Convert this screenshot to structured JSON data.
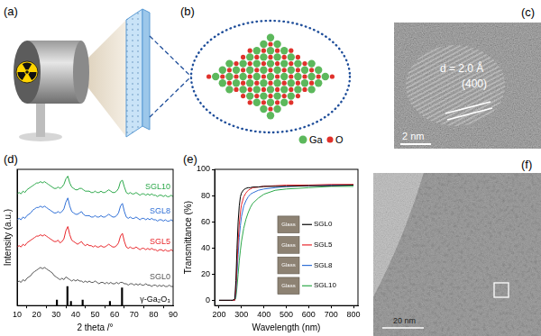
{
  "panels": {
    "a": {
      "label": "(a)"
    },
    "b": {
      "label": "(b)",
      "legend": [
        {
          "name": "Ga",
          "color": "#5cb85c"
        },
        {
          "name": "O",
          "color": "#e0312b"
        }
      ]
    },
    "c": {
      "label": "(c)",
      "annotations": [
        "d = 2.0 Å",
        "(400)"
      ],
      "scale_bar": "2 nm"
    },
    "d": {
      "label": "(d)"
    },
    "e": {
      "label": "(e)"
    },
    "f": {
      "label": "(f)",
      "scale_bar": "20 nm"
    }
  },
  "chart_data": [
    {
      "type": "line",
      "x_label": "2 theta /°",
      "y_label": "Intensity (a.u.)",
      "x": [
        10,
        11,
        12,
        13,
        14,
        15,
        16,
        17,
        18,
        19,
        20,
        21,
        22,
        23,
        24,
        25,
        26,
        27,
        28,
        29,
        30,
        31,
        32,
        33,
        34,
        35,
        36,
        37,
        38,
        39,
        40,
        41,
        42,
        43,
        44,
        45,
        46,
        47,
        48,
        49,
        50,
        51,
        52,
        53,
        54,
        55,
        56,
        57,
        58,
        59,
        60,
        61,
        62,
        63,
        64,
        65,
        66,
        67,
        68,
        69,
        70,
        71,
        72,
        73,
        74,
        75,
        76,
        77,
        78,
        79,
        80,
        81,
        82,
        83,
        84,
        85,
        86,
        87,
        88,
        89,
        90
      ],
      "xlim": [
        10,
        90
      ],
      "xticks": [
        10,
        20,
        30,
        40,
        50,
        60,
        70,
        80,
        90
      ],
      "ylim": [
        0,
        100
      ],
      "tick_labels": "x",
      "grid": false,
      "series": [
        {
          "name": "SGL0",
          "color": "#555555",
          "values": [
            17,
            18,
            17,
            19,
            18,
            20,
            21,
            22,
            24,
            25,
            26,
            27,
            28,
            27,
            28,
            27,
            26,
            25,
            24,
            22,
            21,
            20,
            19,
            20,
            19,
            21,
            20,
            19,
            18,
            19,
            18,
            19,
            18,
            18,
            17,
            18,
            17,
            18,
            17,
            17,
            18,
            17,
            16,
            17,
            17,
            16,
            17,
            16,
            17,
            16,
            16,
            17,
            16,
            17,
            17,
            16,
            16,
            15,
            16,
            16,
            15,
            16,
            15,
            16,
            15,
            15,
            16,
            15,
            15,
            14,
            15,
            15,
            14,
            15,
            14,
            15,
            14,
            14,
            15,
            14,
            14
          ]
        },
        {
          "name": "SGL5",
          "color": "#e8262b",
          "values": [
            43,
            44,
            43,
            45,
            44,
            46,
            47,
            48,
            49,
            50,
            51,
            51,
            52,
            51,
            52,
            51,
            50,
            49,
            48,
            47,
            47,
            48,
            46,
            47,
            49,
            55,
            58,
            52,
            48,
            47,
            46,
            45,
            46,
            47,
            45,
            44,
            45,
            44,
            44,
            43,
            44,
            43,
            43,
            44,
            43,
            43,
            44,
            45,
            44,
            43,
            43,
            44,
            46,
            51,
            53,
            47,
            43,
            42,
            43,
            42,
            42,
            43,
            42,
            41,
            42,
            42,
            41,
            42,
            41,
            42,
            41,
            41,
            40,
            41,
            41,
            40,
            41,
            40,
            40,
            41,
            40
          ]
        },
        {
          "name": "SGL8",
          "color": "#2f6fd6",
          "values": [
            63,
            64,
            63,
            65,
            64,
            66,
            67,
            68,
            70,
            71,
            72,
            72,
            73,
            72,
            73,
            72,
            71,
            70,
            69,
            68,
            68,
            69,
            68,
            69,
            71,
            76,
            79,
            73,
            69,
            68,
            67,
            67,
            68,
            69,
            67,
            66,
            66,
            66,
            65,
            65,
            66,
            65,
            65,
            66,
            65,
            65,
            66,
            67,
            66,
            65,
            65,
            66,
            68,
            73,
            75,
            69,
            65,
            64,
            65,
            64,
            64,
            65,
            64,
            63,
            64,
            64,
            63,
            64,
            63,
            64,
            63,
            63,
            62,
            63,
            63,
            62,
            63,
            62,
            62,
            63,
            62
          ]
        },
        {
          "name": "SGL10",
          "color": "#2ca84a",
          "values": [
            82,
            83,
            82,
            84,
            83,
            85,
            86,
            87,
            88,
            89,
            90,
            90,
            91,
            90,
            91,
            90,
            89,
            88,
            87,
            86,
            86,
            87,
            86,
            87,
            89,
            93,
            95,
            90,
            87,
            86,
            85,
            85,
            86,
            86,
            85,
            84,
            84,
            84,
            83,
            83,
            84,
            83,
            83,
            84,
            83,
            83,
            84,
            85,
            84,
            83,
            83,
            84,
            86,
            91,
            92,
            87,
            83,
            82,
            83,
            82,
            82,
            83,
            82,
            81,
            82,
            82,
            81,
            82,
            81,
            82,
            81,
            81,
            80,
            81,
            81,
            80,
            81,
            80,
            80,
            81,
            80
          ]
        },
        {
          "name": "γ-Ga₂O₃",
          "type": "bar",
          "color": "#000000",
          "x": [
            30.4,
            35.8,
            37.6,
            43.6,
            57.6,
            63.8
          ],
          "values": [
            4,
            14,
            3,
            4,
            3,
            13
          ]
        }
      ]
    },
    {
      "type": "line",
      "x_label": "Wavelength (nm)",
      "y_label": "Transmittance (%)",
      "x": [
        200,
        250,
        260,
        270,
        275,
        280,
        285,
        290,
        295,
        300,
        310,
        320,
        330,
        340,
        350,
        375,
        400,
        450,
        500,
        600,
        700,
        800
      ],
      "xlim": [
        180,
        820
      ],
      "xticks": [
        200,
        300,
        400,
        500,
        600,
        700,
        800
      ],
      "ylim": [
        -4,
        100
      ],
      "yticks": [
        0,
        20,
        40,
        60,
        80,
        100
      ],
      "grid": false,
      "annotations": [
        "Glass"
      ],
      "series": [
        {
          "name": "SGL0",
          "color": "#000000",
          "values": [
            0,
            0,
            0,
            1,
            15,
            40,
            60,
            72,
            79,
            82,
            84.5,
            85.5,
            86,
            86,
            86.5,
            86.5,
            87,
            87,
            87,
            87.5,
            87.5,
            88
          ]
        },
        {
          "name": "SGL5",
          "color": "#e8262b",
          "values": [
            0,
            0,
            0,
            0,
            8,
            28,
            45,
            58,
            67,
            73,
            79,
            82,
            84,
            85,
            86,
            86.5,
            87,
            87.5,
            88,
            88,
            88.5,
            88.5
          ]
        },
        {
          "name": "SGL8",
          "color": "#2f6fd6",
          "values": [
            0,
            0,
            0,
            0,
            5,
            20,
            35,
            48,
            57,
            64,
            72,
            76,
            79,
            81,
            82,
            84,
            85,
            86,
            87,
            87.5,
            88,
            88
          ]
        },
        {
          "name": "SGL10",
          "color": "#2ca84a",
          "values": [
            0,
            0,
            0,
            0,
            2,
            10,
            20,
            30,
            38,
            45,
            55,
            62,
            67,
            71,
            74,
            78,
            81,
            84,
            85,
            86,
            87,
            87
          ]
        }
      ]
    }
  ]
}
